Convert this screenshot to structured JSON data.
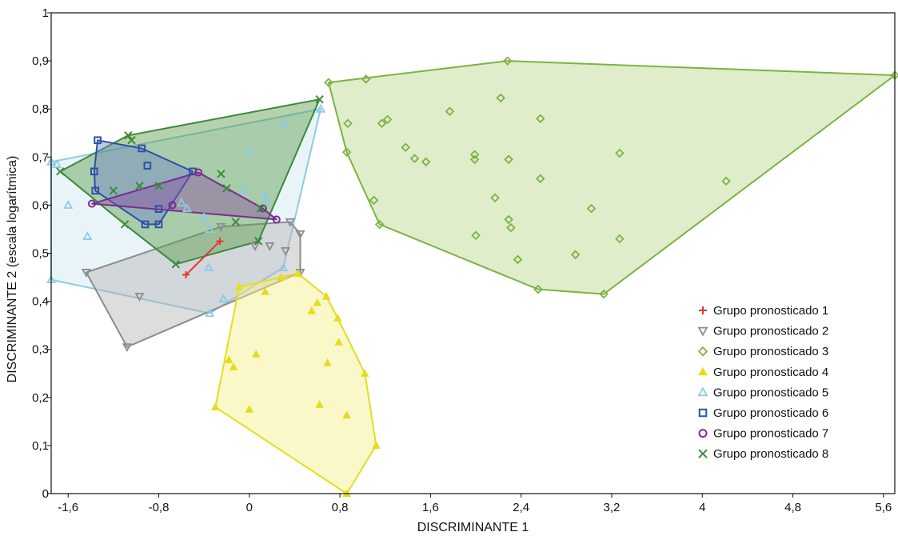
{
  "chart_data": {
    "type": "scatter",
    "xlabel": "DISCRIMINANTE 1",
    "ylabel": "DISCRIMINANTE 2 (escala logarítmica)",
    "xlim": [
      -1.75,
      5.7
    ],
    "ylim": [
      0,
      1
    ],
    "x_ticks": [
      -1.6,
      -0.8,
      0,
      0.8,
      1.6,
      2.4,
      3.2,
      4,
      4.8,
      5.6
    ],
    "x_tick_labels": [
      "-1,6",
      "-0,8",
      "0",
      "0,8",
      "1,6",
      "2,4",
      "3,2",
      "4",
      "4,8",
      "5,6"
    ],
    "y_ticks": [
      0,
      0.1,
      0.2,
      0.3,
      0.4,
      0.5,
      0.6,
      0.7,
      0.8,
      0.9,
      1
    ],
    "y_tick_labels": [
      "0",
      "0,1",
      "0,2",
      "0,3",
      "0,4",
      "0,5",
      "0,6",
      "0,7",
      "0,8",
      "0,9",
      "1"
    ],
    "grid": false,
    "legend_position": "bottom-right",
    "hulls_drawn": true,
    "series": [
      {
        "name": "Grupo pronosticado 1",
        "marker": "plus",
        "color": "#e03a2f",
        "fill": "#f2b8a6",
        "points": [
          [
            -0.56,
            0.455
          ],
          [
            -0.26,
            0.525
          ]
        ]
      },
      {
        "name": "Grupo pronosticado 2",
        "marker": "triangle-down",
        "color": "#8c8c8c",
        "fill": "#b4b4b4",
        "points": [
          [
            -1.44,
            0.46
          ],
          [
            -1.08,
            0.305
          ],
          [
            -0.97,
            0.41
          ],
          [
            -0.25,
            0.555
          ],
          [
            0.05,
            0.515
          ],
          [
            0.18,
            0.515
          ],
          [
            0.32,
            0.505
          ],
          [
            0.36,
            0.565
          ],
          [
            0.45,
            0.54
          ],
          [
            0.45,
            0.46
          ]
        ]
      },
      {
        "name": "Grupo pronosticado 3",
        "marker": "diamond",
        "color": "#7cb342",
        "fill": "#b9d68c",
        "points": [
          [
            0.7,
            0.855
          ],
          [
            1.03,
            0.862
          ],
          [
            0.87,
            0.77
          ],
          [
            0.86,
            0.71
          ],
          [
            1.1,
            0.61
          ],
          [
            1.15,
            0.56
          ],
          [
            1.17,
            0.77
          ],
          [
            1.22,
            0.778
          ],
          [
            1.38,
            0.72
          ],
          [
            1.46,
            0.697
          ],
          [
            1.56,
            0.69
          ],
          [
            1.77,
            0.795
          ],
          [
            1.99,
            0.705
          ],
          [
            1.99,
            0.695
          ],
          [
            2.0,
            0.537
          ],
          [
            2.17,
            0.615
          ],
          [
            2.22,
            0.823
          ],
          [
            2.28,
            0.9
          ],
          [
            2.29,
            0.57
          ],
          [
            2.29,
            0.695
          ],
          [
            2.31,
            0.553
          ],
          [
            2.37,
            0.487
          ],
          [
            2.57,
            0.78
          ],
          [
            2.57,
            0.655
          ],
          [
            2.55,
            0.425
          ],
          [
            2.88,
            0.497
          ],
          [
            3.02,
            0.593
          ],
          [
            3.13,
            0.415
          ],
          [
            3.27,
            0.708
          ],
          [
            3.27,
            0.53
          ],
          [
            4.21,
            0.65
          ],
          [
            5.7,
            0.87
          ]
        ]
      },
      {
        "name": "Grupo pronosticado 4",
        "marker": "triangle-up",
        "color": "#e6dc1e",
        "fill": "#f5ef87",
        "points": [
          [
            -0.3,
            0.18
          ],
          [
            -0.09,
            0.43
          ],
          [
            -0.18,
            0.278
          ],
          [
            -0.14,
            0.263
          ],
          [
            0.06,
            0.29
          ],
          [
            0.0,
            0.175
          ],
          [
            0.14,
            0.42
          ],
          [
            0.28,
            0.45
          ],
          [
            0.43,
            0.458
          ],
          [
            0.55,
            0.38
          ],
          [
            0.6,
            0.397
          ],
          [
            0.68,
            0.41
          ],
          [
            0.69,
            0.272
          ],
          [
            0.78,
            0.365
          ],
          [
            0.79,
            0.315
          ],
          [
            0.86,
            0.0
          ],
          [
            0.86,
            0.163
          ],
          [
            1.02,
            0.25
          ],
          [
            1.12,
            0.1
          ],
          [
            0.62,
            0.185
          ]
        ]
      },
      {
        "name": "Grupo pronosticado 5",
        "marker": "triangle-up-open",
        "color": "#8ecae6",
        "fill": "#cfe6f2",
        "points": [
          [
            -1.75,
            0.69
          ],
          [
            -1.75,
            0.445
          ],
          [
            -1.7,
            0.685
          ],
          [
            -1.6,
            0.6
          ],
          [
            -1.43,
            0.535
          ],
          [
            -0.6,
            0.605
          ],
          [
            -0.55,
            0.593
          ],
          [
            -0.4,
            0.575
          ],
          [
            -0.35,
            0.55
          ],
          [
            -0.36,
            0.47
          ],
          [
            -0.23,
            0.405
          ],
          [
            -0.35,
            0.375
          ],
          [
            -0.05,
            0.632
          ],
          [
            0.0,
            0.712
          ],
          [
            0.13,
            0.622
          ],
          [
            0.15,
            0.61
          ],
          [
            0.3,
            0.77
          ],
          [
            0.3,
            0.47
          ],
          [
            0.63,
            0.8
          ]
        ]
      },
      {
        "name": "Grupo pronosticado 6",
        "marker": "square-open",
        "color": "#2f4fa8",
        "fill": "#6e86c8",
        "points": [
          [
            -1.34,
            0.735
          ],
          [
            -1.37,
            0.67
          ],
          [
            -1.36,
            0.63
          ],
          [
            -0.95,
            0.718
          ],
          [
            -0.9,
            0.682
          ],
          [
            -0.92,
            0.56
          ],
          [
            -0.8,
            0.592
          ],
          [
            -0.8,
            0.56
          ],
          [
            -0.5,
            0.67
          ]
        ]
      },
      {
        "name": "Grupo pronosticado 7",
        "marker": "circle-open",
        "color": "#7b2c8f",
        "fill": "#8a4fa0",
        "points": [
          [
            -1.39,
            0.603
          ],
          [
            -0.68,
            0.6
          ],
          [
            -0.45,
            0.668
          ],
          [
            0.12,
            0.593
          ],
          [
            0.24,
            0.57
          ]
        ]
      },
      {
        "name": "Grupo pronosticado 8",
        "marker": "x",
        "color": "#3a8a3a",
        "fill": "#5c9c4a",
        "points": [
          [
            -1.67,
            0.67
          ],
          [
            -1.07,
            0.745
          ],
          [
            -1.04,
            0.735
          ],
          [
            -1.1,
            0.56
          ],
          [
            -1.2,
            0.63
          ],
          [
            -0.97,
            0.64
          ],
          [
            -0.8,
            0.64
          ],
          [
            -0.65,
            0.477
          ],
          [
            -0.25,
            0.665
          ],
          [
            -0.2,
            0.635
          ],
          [
            -0.12,
            0.565
          ],
          [
            0.08,
            0.525
          ],
          [
            0.1,
            0.593
          ],
          [
            0.62,
            0.82
          ]
        ]
      }
    ]
  }
}
